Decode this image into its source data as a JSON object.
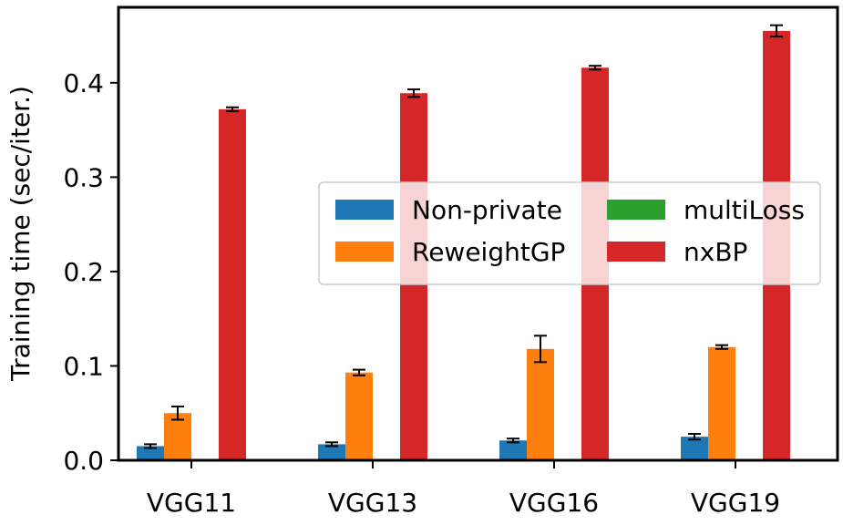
{
  "chart_data": {
    "type": "bar",
    "title": "",
    "xlabel": "",
    "ylabel": "Training time (sec/iter.)",
    "ylim": [
      0,
      0.48
    ],
    "yticks": [
      0.0,
      0.1,
      0.2,
      0.3,
      0.4
    ],
    "ytick_labels": [
      "0.0",
      "0.1",
      "0.2",
      "0.3",
      "0.4"
    ],
    "grid": false,
    "legend_position": "center-right",
    "categories": [
      "VGG11",
      "VGG13",
      "VGG16",
      "VGG19"
    ],
    "series": [
      {
        "name": "Non-private",
        "color": "#1f77b4",
        "values": [
          0.015,
          0.017,
          0.021,
          0.025
        ],
        "errors": [
          0.002,
          0.002,
          0.002,
          0.003
        ]
      },
      {
        "name": "ReweightGP",
        "color": "#ff7f0e",
        "values": [
          0.05,
          0.093,
          0.118,
          0.12
        ],
        "errors": [
          0.007,
          0.003,
          0.014,
          0.002
        ]
      },
      {
        "name": "multiLoss",
        "color": "#2ca02c",
        "values": [
          0,
          0,
          0,
          0
        ],
        "errors": [
          0,
          0,
          0,
          0
        ]
      },
      {
        "name": "nxBP",
        "color": "#d62728",
        "values": [
          0.372,
          0.389,
          0.416,
          0.455
        ],
        "errors": [
          0.002,
          0.004,
          0.002,
          0.006
        ]
      }
    ]
  }
}
